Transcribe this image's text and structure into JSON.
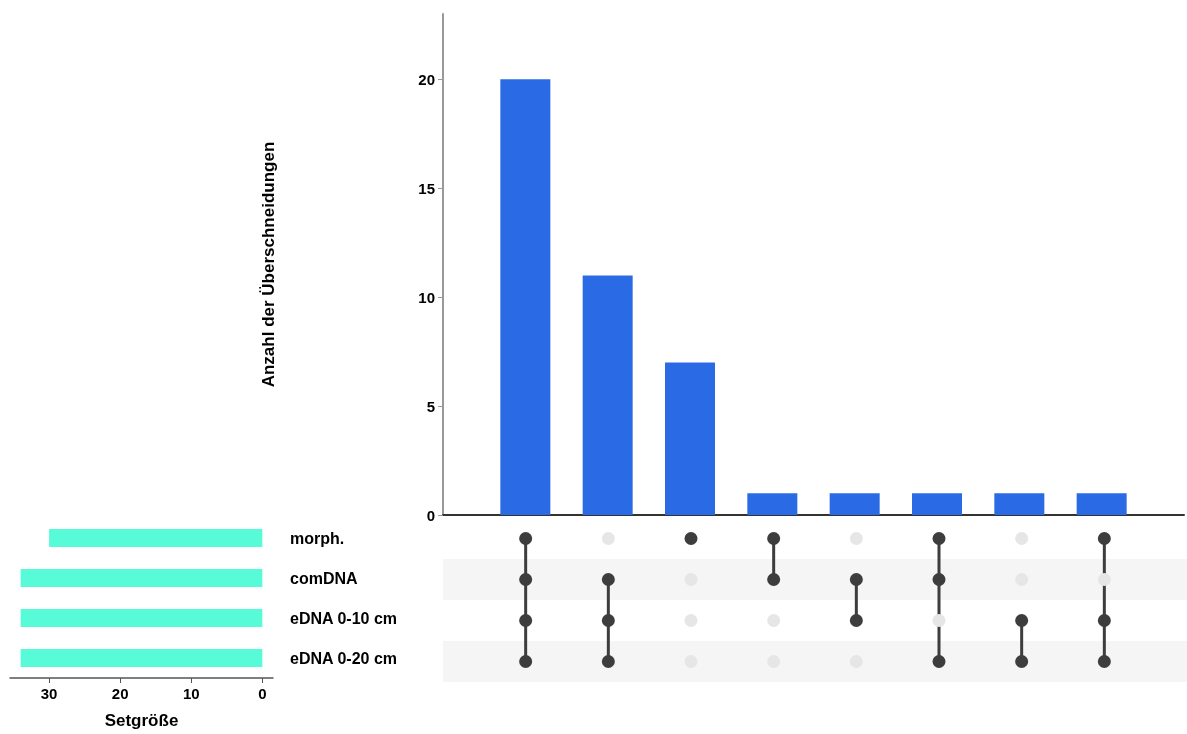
{
  "chart_data": [
    {
      "type": "bar",
      "ylabel": "Anzahl der Überschneidungen",
      "categories": [
        null,
        null,
        null,
        null,
        null,
        null,
        null,
        null
      ],
      "values": [
        20,
        11,
        7,
        1,
        1,
        1,
        1,
        1
      ],
      "color": "#2a6be5",
      "ylim": [
        0,
        23
      ],
      "yticks": [
        0,
        5,
        10,
        15,
        20
      ],
      "grid": false
    },
    {
      "type": "bar",
      "orientation": "horizontal",
      "xlabel": "Setgröße",
      "categories": [
        "morph.",
        "comDNA",
        "eDNA 0-10 cm",
        "eDNA 0-20 cm"
      ],
      "values": [
        30,
        34,
        34,
        34
      ],
      "color": "#57fbd8",
      "xlim": [
        35.5,
        -1.5
      ],
      "xticks": [
        30,
        20,
        10,
        0
      ],
      "grid": false
    },
    {
      "type": "other",
      "cells": [
        [
          true,
          false,
          true,
          true,
          false,
          true,
          false,
          true
        ],
        [
          true,
          true,
          false,
          true,
          true,
          true,
          false,
          false
        ],
        [
          true,
          true,
          false,
          false,
          true,
          false,
          true,
          true
        ],
        [
          true,
          true,
          false,
          false,
          false,
          true,
          true,
          true
        ]
      ]
    }
  ]
}
